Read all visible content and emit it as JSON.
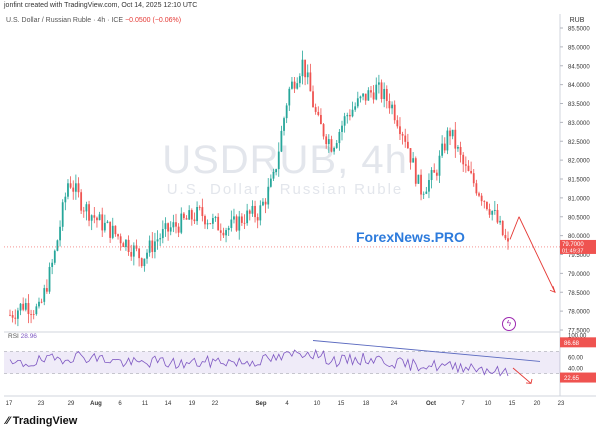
{
  "header": {
    "credit": "jonfint created with TradingView.com, Oct 14, 2025 12:10 UTC",
    "instrument": "U.S. Dollar / Russian Ruble · 4h · ICE",
    "change": "−0.0500 (−0.06%)",
    "currency": "RUB"
  },
  "watermark": {
    "symbol": "USDRUB, 4h",
    "description": "U.S. Dollar / Russian Ruble"
  },
  "overlay_text": "ForexNews.PRO",
  "rsi_label": {
    "name": "RSI",
    "value": "28.96"
  },
  "footer": {
    "brand": "TradingView"
  },
  "colors": {
    "up": "#26a69a",
    "down": "#ef5350",
    "rsi": "#7e57c2",
    "trendline": "#5c6bc0",
    "arrow": "#e53935",
    "overlay": "#2d7bdc"
  },
  "chart_data": [
    {
      "type": "candlestick",
      "price_axis": {
        "min": 77.5,
        "max": 85.5,
        "ticks": [
          "85.5000",
          "85.0000",
          "84.5000",
          "84.0000",
          "83.5000",
          "83.0000",
          "82.5000",
          "82.0000",
          "81.5000",
          "81.0000",
          "80.5000",
          "80.0000",
          "79.5000",
          "79.0000",
          "78.5000",
          "78.0000",
          "77.5000"
        ]
      },
      "current_price": {
        "value": "79.7000",
        "countdown": "01:49:37"
      },
      "x_ticks": [
        "17",
        "23",
        "29",
        "Aug",
        "6",
        "11",
        "14",
        "19",
        "22",
        "Sep",
        "4",
        "10",
        "15",
        "18",
        "24",
        "Oct",
        "7",
        "10",
        "15",
        "20",
        "23"
      ],
      "close_path": [
        {
          "t": "Jul 17",
          "c": 77.9
        },
        {
          "t": "Jul 20",
          "c": 78.2
        },
        {
          "t": "Jul 23",
          "c": 78.0
        },
        {
          "t": "Jul 25",
          "c": 79.4
        },
        {
          "t": "Jul 27",
          "c": 81.5
        },
        {
          "t": "Jul 29",
          "c": 80.8
        },
        {
          "t": "Jul 31",
          "c": 80.4
        },
        {
          "t": "Aug 3",
          "c": 80.1
        },
        {
          "t": "Aug 6",
          "c": 79.8
        },
        {
          "t": "Aug 9",
          "c": 79.4
        },
        {
          "t": "Aug 11",
          "c": 79.9
        },
        {
          "t": "Aug 14",
          "c": 80.2
        },
        {
          "t": "Aug 17",
          "c": 80.4
        },
        {
          "t": "Aug 19",
          "c": 80.6
        },
        {
          "t": "Aug 22",
          "c": 80.3
        },
        {
          "t": "Aug 25",
          "c": 80.2
        },
        {
          "t": "Aug 28",
          "c": 80.5
        },
        {
          "t": "Sep 1",
          "c": 80.6
        },
        {
          "t": "Sep 4",
          "c": 81.5
        },
        {
          "t": "Sep 7",
          "c": 83.8
        },
        {
          "t": "Sep 10",
          "c": 84.6
        },
        {
          "t": "Sep 12",
          "c": 83.0
        },
        {
          "t": "Sep 15",
          "c": 82.4
        },
        {
          "t": "Sep 18",
          "c": 83.2
        },
        {
          "t": "Sep 21",
          "c": 83.6
        },
        {
          "t": "Sep 24",
          "c": 83.9
        },
        {
          "t": "Sep 27",
          "c": 83.5
        },
        {
          "t": "Oct 1",
          "c": 82.6
        },
        {
          "t": "Oct 3",
          "c": 81.2
        },
        {
          "t": "Oct 6",
          "c": 81.6
        },
        {
          "t": "Oct 8",
          "c": 82.8
        },
        {
          "t": "Oct 10",
          "c": 81.8
        },
        {
          "t": "Oct 12",
          "c": 81.2
        },
        {
          "t": "Oct 13",
          "c": 80.6
        },
        {
          "t": "Oct 14",
          "c": 79.7
        }
      ],
      "projection": [
        {
          "t": "Oct 15",
          "v": 80.5
        },
        {
          "t": "Oct 21",
          "v": 78.5
        }
      ]
    },
    {
      "type": "line",
      "name": "RSI",
      "y_ticks": [
        "100.00",
        "60.00",
        "40.00"
      ],
      "levels": {
        "upper": "86.68",
        "lower": "22.65"
      },
      "current_value": "28.96",
      "values": [
        45,
        48,
        52,
        55,
        60,
        62,
        58,
        55,
        50,
        48,
        52,
        50,
        47,
        49,
        51,
        53,
        50,
        52,
        55,
        58,
        66,
        70,
        60,
        52,
        54,
        57,
        55,
        50,
        45,
        46,
        44,
        42,
        44,
        40,
        35,
        28.96
      ]
    }
  ]
}
